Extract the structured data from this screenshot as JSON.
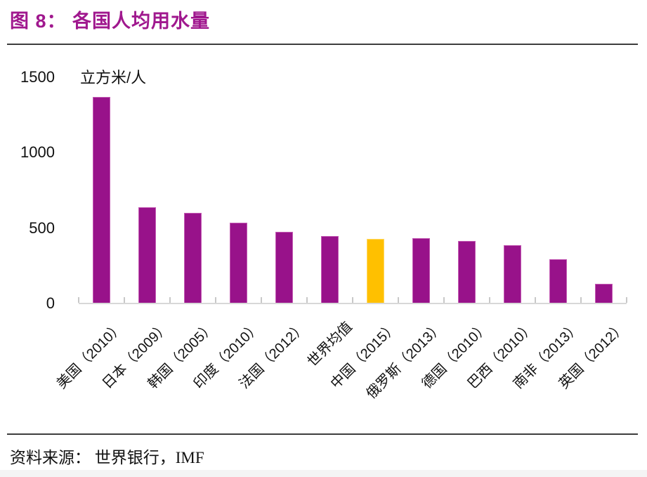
{
  "title": "图 8：  各国人均用水量",
  "footer": {
    "source": "资料来源：  世界银行，IMF"
  },
  "colors": {
    "title": "#A0188E",
    "bar": "#98128A",
    "highlight": "#FFC000",
    "axis_line": "#D8D8D8",
    "tick": "#C8C8C8",
    "rule": "#3D3D3D",
    "text": "#111111"
  },
  "chart_data": {
    "type": "bar",
    "title": "各国人均用水量",
    "unit_label": "立方米/人",
    "categories": [
      "美国（2010）",
      "日本（2009）",
      "韩国（2005）",
      "印度（2010）",
      "法国（2012）",
      "世界均值",
      "中国（2015）",
      "俄罗斯（2013）",
      "德国（2010）",
      "巴西（2010）",
      "南非（2013）",
      "英国（2012）"
    ],
    "values": [
      1370,
      640,
      600,
      535,
      475,
      445,
      430,
      435,
      415,
      385,
      295,
      130
    ],
    "highlight_index": 6,
    "bar_color": "#98128A",
    "highlight_color": "#FFC000",
    "ylabel": "立方米/人",
    "ylim": [
      0,
      1500
    ],
    "yticks": [
      0,
      500,
      1000,
      1500
    ],
    "grid": false,
    "legend": null
  }
}
